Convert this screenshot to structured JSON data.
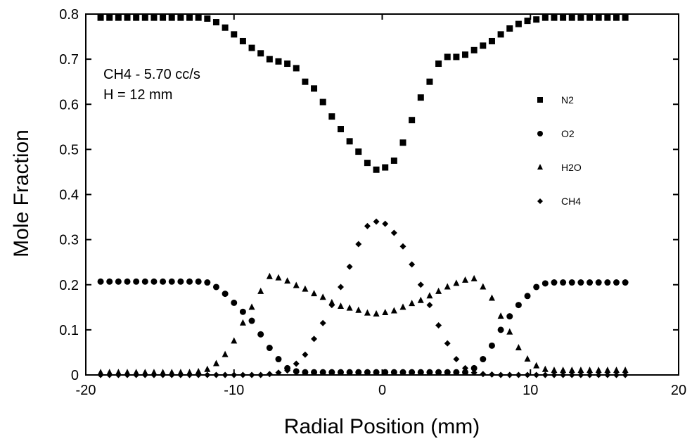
{
  "chart_data": {
    "type": "scatter",
    "xlabel": "Radial Position (mm)",
    "ylabel": "Mole Fraction",
    "xlim": [
      -20,
      20
    ],
    "ylim": [
      0,
      0.8
    ],
    "xticks": [
      -20,
      -10,
      0,
      10,
      20
    ],
    "xtick_labels": [
      "-20",
      "-10",
      "0",
      "10",
      "20"
    ],
    "yticks": [
      0,
      0.1,
      0.2,
      0.3,
      0.4,
      0.5,
      0.6,
      0.7,
      0.8
    ],
    "ytick_labels": [
      "0",
      "0.1",
      "0.2",
      "0.3",
      "0.4",
      "0.5",
      "0.6",
      "0.7",
      "0.8"
    ],
    "annotations": [
      "CH4 - 5.70 cc/s",
      "H = 12 mm"
    ],
    "legend_position": "right",
    "grid": false,
    "series": [
      {
        "name": "N2",
        "marker": "square",
        "x": [
          -19.0,
          -18.4,
          -17.8,
          -17.2,
          -16.6,
          -16.0,
          -15.4,
          -14.8,
          -14.2,
          -13.6,
          -13.0,
          -12.4,
          -11.8,
          -11.2,
          -10.6,
          -10.0,
          -9.4,
          -8.8,
          -8.2,
          -7.6,
          -7.0,
          -6.4,
          -5.8,
          -5.2,
          -4.6,
          -4.0,
          -3.4,
          -2.8,
          -2.2,
          -1.6,
          -1.0,
          -0.4,
          0.2,
          0.8,
          1.4,
          2.0,
          2.6,
          3.2,
          3.8,
          4.4,
          5.0,
          5.6,
          6.2,
          6.8,
          7.4,
          8.0,
          8.6,
          9.2,
          9.8,
          10.4,
          11.0,
          11.6,
          12.2,
          12.8,
          13.4,
          14.0,
          14.6,
          15.2,
          15.8,
          16.4
        ],
        "y": [
          0.792,
          0.792,
          0.792,
          0.792,
          0.792,
          0.792,
          0.792,
          0.792,
          0.792,
          0.792,
          0.792,
          0.792,
          0.79,
          0.782,
          0.77,
          0.755,
          0.74,
          0.725,
          0.713,
          0.7,
          0.695,
          0.69,
          0.68,
          0.65,
          0.635,
          0.605,
          0.573,
          0.545,
          0.518,
          0.495,
          0.47,
          0.455,
          0.46,
          0.475,
          0.515,
          0.565,
          0.615,
          0.65,
          0.69,
          0.705,
          0.705,
          0.71,
          0.72,
          0.73,
          0.74,
          0.755,
          0.768,
          0.778,
          0.785,
          0.788,
          0.792,
          0.792,
          0.792,
          0.792,
          0.792,
          0.792,
          0.792,
          0.792,
          0.792,
          0.792
        ]
      },
      {
        "name": "O2",
        "marker": "circle",
        "x": [
          -19.0,
          -18.4,
          -17.8,
          -17.2,
          -16.6,
          -16.0,
          -15.4,
          -14.8,
          -14.2,
          -13.6,
          -13.0,
          -12.4,
          -11.8,
          -11.2,
          -10.6,
          -10.0,
          -9.4,
          -8.8,
          -8.2,
          -7.6,
          -7.0,
          -6.4,
          -5.8,
          -5.2,
          -4.6,
          -4.0,
          -3.4,
          -2.8,
          -2.2,
          -1.6,
          -1.0,
          -0.4,
          0.2,
          0.8,
          1.4,
          2.0,
          2.6,
          3.2,
          3.8,
          4.4,
          5.0,
          5.6,
          6.2,
          6.8,
          7.4,
          8.0,
          8.6,
          9.2,
          9.8,
          10.4,
          11.0,
          11.6,
          12.2,
          12.8,
          13.4,
          14.0,
          14.6,
          15.2,
          15.8,
          16.4
        ],
        "y": [
          0.207,
          0.207,
          0.207,
          0.207,
          0.207,
          0.207,
          0.207,
          0.207,
          0.207,
          0.207,
          0.207,
          0.207,
          0.205,
          0.195,
          0.18,
          0.16,
          0.14,
          0.12,
          0.09,
          0.06,
          0.035,
          0.015,
          0.008,
          0.006,
          0.006,
          0.006,
          0.006,
          0.006,
          0.006,
          0.006,
          0.006,
          0.006,
          0.006,
          0.006,
          0.006,
          0.006,
          0.006,
          0.006,
          0.006,
          0.006,
          0.006,
          0.006,
          0.015,
          0.035,
          0.065,
          0.1,
          0.13,
          0.155,
          0.175,
          0.195,
          0.203,
          0.205,
          0.205,
          0.205,
          0.205,
          0.205,
          0.205,
          0.205,
          0.205,
          0.205
        ]
      },
      {
        "name": "H2O",
        "marker": "triangle",
        "x": [
          -19.0,
          -18.4,
          -17.8,
          -17.2,
          -16.6,
          -16.0,
          -15.4,
          -14.8,
          -14.2,
          -13.6,
          -13.0,
          -12.4,
          -11.8,
          -11.2,
          -10.6,
          -10.0,
          -9.4,
          -8.8,
          -8.2,
          -7.6,
          -7.0,
          -6.4,
          -5.8,
          -5.2,
          -4.6,
          -4.0,
          -3.4,
          -2.8,
          -2.2,
          -1.6,
          -1.0,
          -0.4,
          0.2,
          0.8,
          1.4,
          2.0,
          2.6,
          3.2,
          3.8,
          4.4,
          5.0,
          5.6,
          6.2,
          6.8,
          7.4,
          8.0,
          8.6,
          9.2,
          9.8,
          10.4,
          11.0,
          11.6,
          12.2,
          12.8,
          13.4,
          14.0,
          14.6,
          15.2,
          15.8,
          16.4
        ],
        "y": [
          0.005,
          0.005,
          0.005,
          0.005,
          0.005,
          0.005,
          0.005,
          0.005,
          0.005,
          0.005,
          0.005,
          0.007,
          0.012,
          0.025,
          0.045,
          0.075,
          0.115,
          0.15,
          0.185,
          0.218,
          0.215,
          0.208,
          0.198,
          0.19,
          0.18,
          0.172,
          0.16,
          0.152,
          0.148,
          0.143,
          0.137,
          0.135,
          0.138,
          0.142,
          0.15,
          0.158,
          0.165,
          0.175,
          0.185,
          0.195,
          0.203,
          0.21,
          0.213,
          0.195,
          0.17,
          0.13,
          0.095,
          0.06,
          0.035,
          0.02,
          0.012,
          0.01,
          0.01,
          0.01,
          0.01,
          0.01,
          0.01,
          0.01,
          0.01,
          0.01
        ]
      },
      {
        "name": "CH4",
        "marker": "diamond",
        "x": [
          -19.0,
          -18.4,
          -17.8,
          -17.2,
          -16.6,
          -16.0,
          -15.4,
          -14.8,
          -14.2,
          -13.6,
          -13.0,
          -12.4,
          -11.8,
          -11.2,
          -10.6,
          -10.0,
          -9.4,
          -8.8,
          -8.2,
          -7.6,
          -7.0,
          -6.4,
          -5.8,
          -5.2,
          -4.6,
          -4.0,
          -3.4,
          -2.8,
          -2.2,
          -1.6,
          -1.0,
          -0.4,
          0.2,
          0.8,
          1.4,
          2.0,
          2.6,
          3.2,
          3.8,
          4.4,
          5.0,
          5.6,
          6.2,
          6.8,
          7.4,
          8.0,
          8.6,
          9.2,
          9.8,
          10.4,
          11.0,
          11.6,
          12.2,
          12.8,
          13.4,
          14.0,
          14.6,
          15.2,
          15.8,
          16.4
        ],
        "y": [
          0.0,
          0.0,
          0.0,
          0.0,
          0.0,
          0.0,
          0.0,
          0.0,
          0.0,
          0.0,
          0.0,
          0.0,
          0.0,
          0.0,
          0.0,
          0.0,
          0.0,
          0.0,
          0.0,
          0.002,
          0.005,
          0.01,
          0.025,
          0.045,
          0.08,
          0.115,
          0.155,
          0.195,
          0.24,
          0.29,
          0.33,
          0.34,
          0.335,
          0.315,
          0.285,
          0.245,
          0.2,
          0.155,
          0.11,
          0.07,
          0.035,
          0.015,
          0.005,
          0.002,
          0.001,
          0.0,
          0.0,
          0.0,
          0.0,
          0.0,
          0.0,
          0.0,
          0.0,
          0.0,
          0.0,
          0.0,
          0.0,
          0.0,
          0.0,
          0.0
        ]
      }
    ]
  },
  "colors": {
    "axis": "#000000",
    "marker": "#000000",
    "background": "#ffffff"
  }
}
